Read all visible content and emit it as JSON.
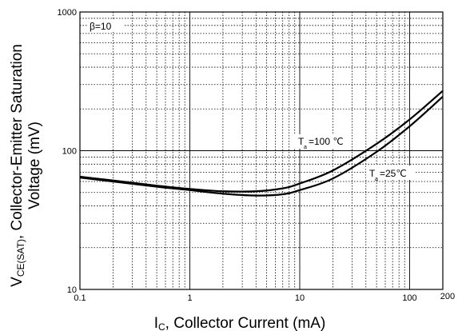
{
  "chart_data": {
    "type": "line",
    "title": "",
    "xlabel": "I_C, Collector Current (mA)",
    "ylabel": "V_CE(SAT), Collector-Emitter Saturation Voltage (mV)",
    "x_scale": "log",
    "y_scale": "log",
    "xlim": [
      0.1,
      200
    ],
    "ylim": [
      10,
      1000
    ],
    "grid": true,
    "x_ticks": [
      "0.1",
      "1",
      "10",
      "100",
      "200"
    ],
    "y_ticks": [
      "10",
      "100",
      "1000"
    ],
    "annotations": {
      "beta": "β=10",
      "ta100": "=100 ℃",
      "ta25": "=25℃"
    },
    "series": [
      {
        "name": "T_a=100 ℃",
        "x": [
          0.1,
          0.2,
          0.5,
          1,
          2,
          4,
          7,
          10,
          20,
          50,
          100,
          200
        ],
        "y": [
          65,
          61,
          56,
          53,
          51,
          51,
          53.5,
          58,
          72,
          112,
          168,
          270
        ]
      },
      {
        "name": "T_a=25℃",
        "x": [
          0.1,
          0.2,
          0.5,
          1,
          2,
          4,
          7,
          10,
          20,
          50,
          100,
          200
        ],
        "y": [
          64,
          60,
          55,
          52,
          49,
          47.5,
          48.5,
          52,
          63,
          98,
          150,
          245
        ]
      }
    ]
  }
}
